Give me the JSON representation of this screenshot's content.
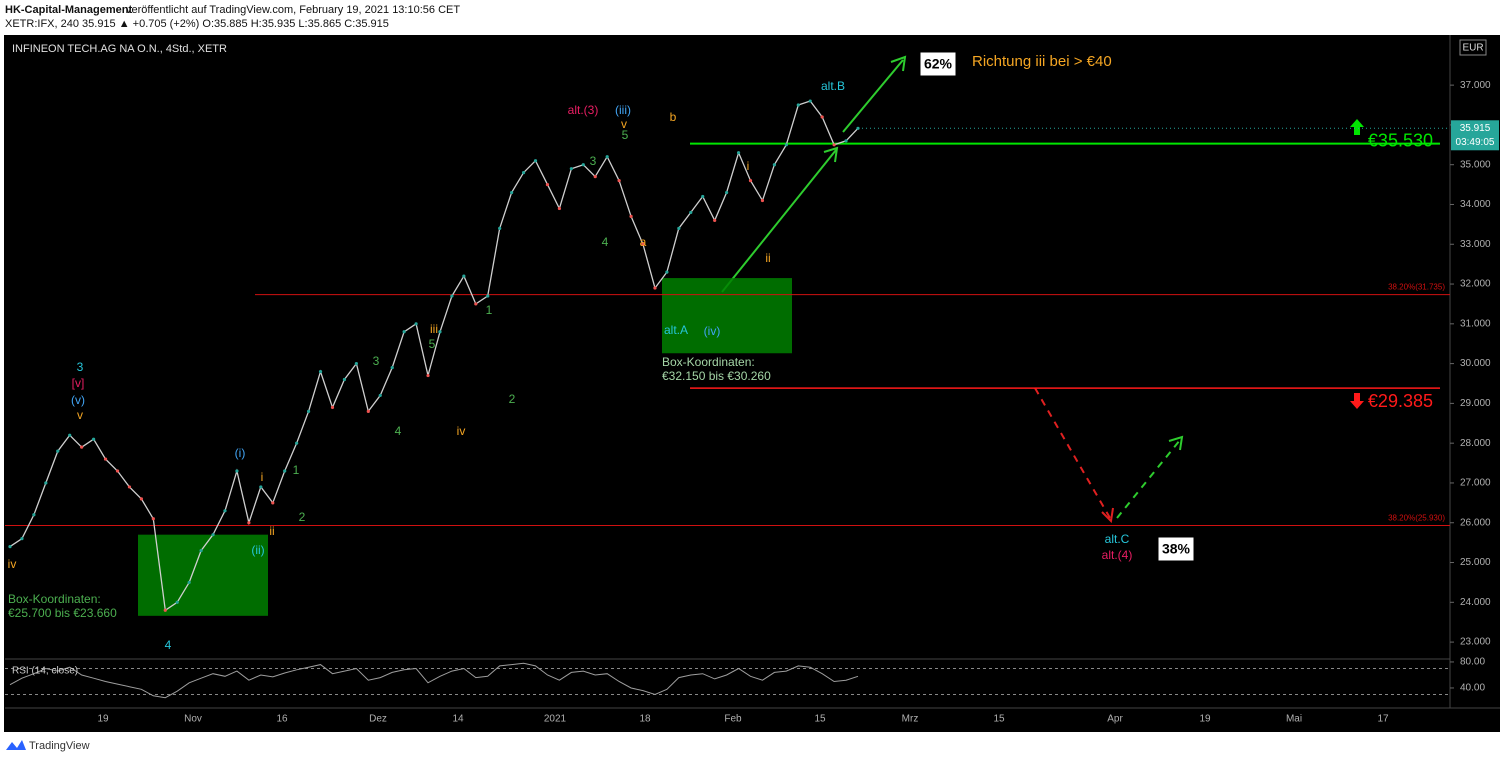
{
  "header": {
    "publisher": "HK-Capital-Management",
    "published": "veröffentlicht auf TradingView.com, February 19, 2021 13:10:56 CET",
    "quote": "XETR:IFX, 240  35.915 ▲ +0.705 (+2%) O:35.885 H:35.935 L:35.865 C:35.915"
  },
  "footer": {
    "brand": "TradingView"
  },
  "chart_data": {
    "type": "line",
    "title": "INFINEON TECH.AG NA O.N., 4Std., XETR",
    "currency": "EUR",
    "color": "#cfcfcf",
    "values": [
      25.4,
      25.6,
      26.2,
      27.0,
      27.8,
      28.2,
      27.9,
      28.1,
      27.6,
      27.3,
      26.9,
      26.6,
      26.1,
      23.8,
      24.0,
      24.5,
      25.3,
      25.7,
      26.3,
      27.3,
      26.0,
      26.9,
      26.5,
      27.3,
      28.0,
      28.8,
      29.8,
      28.9,
      29.6,
      30.0,
      28.8,
      29.2,
      29.9,
      30.8,
      31.0,
      29.7,
      30.8,
      31.7,
      32.2,
      31.5,
      31.7,
      33.4,
      34.3,
      34.8,
      35.1,
      34.5,
      33.9,
      34.9,
      35.0,
      34.7,
      35.2,
      34.6,
      33.7,
      33.0,
      31.9,
      32.3,
      33.4,
      33.8,
      34.2,
      33.6,
      34.3,
      35.3,
      34.6,
      34.1,
      35.0,
      35.5,
      36.5,
      36.6,
      36.2,
      35.5,
      35.6,
      35.915
    ],
    "ylim": [
      22.6,
      38.26
    ],
    "yticks": [
      {
        "value": 37,
        "label": "37.000"
      },
      {
        "value": 36,
        "label": "36.000"
      },
      {
        "value": 35,
        "label": "35.000"
      },
      {
        "value": 34,
        "label": "34.000"
      },
      {
        "value": 33,
        "label": "33.000"
      },
      {
        "value": 32,
        "label": "32.000"
      },
      {
        "value": 31,
        "label": "31.000"
      },
      {
        "value": 30,
        "label": "30.000"
      },
      {
        "value": 29,
        "label": "29.000"
      },
      {
        "value": 28,
        "label": "28.000"
      },
      {
        "value": 27,
        "label": "27.000"
      },
      {
        "value": 26,
        "label": "26.000"
      },
      {
        "value": 25,
        "label": "25.000"
      },
      {
        "value": 24,
        "label": "24.000"
      },
      {
        "value": 23,
        "label": "23.000"
      }
    ],
    "last_price": 35.915,
    "countdown": "03:49:05",
    "last_color": "#26a69a",
    "xticks": [
      "19",
      "Nov",
      "16",
      "Dez",
      "14",
      "2021",
      "18",
      "Feb",
      "15",
      "Mrz",
      "15",
      "Apr",
      "19",
      "Mai",
      "17"
    ],
    "levels": [
      {
        "value": 35.53,
        "label": "€35.530",
        "color": "#00e600"
      },
      {
        "value": 29.385,
        "label": "€29.385",
        "color": "#ff1a1a"
      },
      {
        "value": 31.735,
        "label": "38.20%(31.735)",
        "color": "#d01010"
      },
      {
        "value": 25.93,
        "label": "38.20%(25.930)",
        "color": "#d01010"
      }
    ],
    "zones": [
      {
        "top": 25.7,
        "bottom": 23.66,
        "title": "Box-Koordinaten:",
        "range": "€25.700 bis €23.660"
      },
      {
        "top": 32.15,
        "bottom": 30.26,
        "title": "Box-Koordinaten:",
        "range": "€32.150 bis €30.260"
      }
    ],
    "notes": [
      "62%",
      "Richtung iii bei > €40",
      "38%"
    ],
    "annotations": [
      {
        "text": "iv",
        "color": "#f5a623"
      },
      {
        "text": "3",
        "color": "#26c6da"
      },
      {
        "text": "[v]",
        "color": "#e91e63"
      },
      {
        "text": "(v)",
        "color": "#42a5f5"
      },
      {
        "text": "v",
        "color": "#f5a623"
      },
      {
        "text": "4",
        "color": "#26c6da"
      },
      {
        "text": "(i)",
        "color": "#42a5f5"
      },
      {
        "text": "i",
        "color": "#f5a623"
      },
      {
        "text": "(ii)",
        "color": "#26c6da"
      },
      {
        "text": "ii",
        "color": "#f5a623"
      },
      {
        "text": "1",
        "color": "#4caf50"
      },
      {
        "text": "2",
        "color": "#4caf50"
      },
      {
        "text": "3",
        "color": "#4caf50"
      },
      {
        "text": "4",
        "color": "#4caf50"
      },
      {
        "text": "iii",
        "color": "#f5a623"
      },
      {
        "text": "5",
        "color": "#4caf50"
      },
      {
        "text": "iv",
        "color": "#f5a623"
      },
      {
        "text": "1",
        "color": "#4caf50"
      },
      {
        "text": "2",
        "color": "#4caf50"
      },
      {
        "text": "3",
        "color": "#4caf50"
      },
      {
        "text": "4",
        "color": "#4caf50"
      },
      {
        "text": "alt.(3)",
        "color": "#e91e63"
      },
      {
        "text": "(iii)",
        "color": "#42a5f5"
      },
      {
        "text": "v",
        "color": "#f5a623"
      },
      {
        "text": "5",
        "color": "#4caf50"
      },
      {
        "text": "a",
        "color": "#f5a623"
      },
      {
        "text": "b",
        "color": "#f5a623"
      },
      {
        "text": "alt.A",
        "color": "#26c6da"
      },
      {
        "text": "(iv)",
        "color": "#42a5f5"
      },
      {
        "text": "i",
        "color": "#f5a623"
      },
      {
        "text": "ii",
        "color": "#f5a623"
      },
      {
        "text": "alt.B",
        "color": "#26c6da"
      },
      {
        "text": "alt.C",
        "color": "#26c6da"
      },
      {
        "text": "alt.(4)",
        "color": "#e91e63"
      }
    ],
    "rsi": {
      "title": "RSI (14, close)",
      "color": "#9e9e9e",
      "ylim": [
        13.8,
        83
      ],
      "yticks": [
        {
          "value": 80,
          "label": "80.00"
        },
        {
          "value": 40,
          "label": "40.00"
        }
      ],
      "bands": [
        70,
        30
      ],
      "values": [
        45,
        55,
        62,
        70,
        66,
        72,
        60,
        55,
        50,
        46,
        42,
        38,
        28,
        25,
        35,
        48,
        55,
        62,
        58,
        66,
        52,
        60,
        57,
        63,
        68,
        72,
        76,
        62,
        66,
        70,
        52,
        56,
        64,
        68,
        70,
        48,
        58,
        66,
        70,
        56,
        58,
        74,
        76,
        78,
        74,
        60,
        52,
        64,
        66,
        60,
        62,
        50,
        40,
        36,
        30,
        38,
        56,
        60,
        62,
        54,
        60,
        70,
        58,
        52,
        64,
        66,
        74,
        72,
        62,
        50,
        52,
        58
      ]
    }
  }
}
